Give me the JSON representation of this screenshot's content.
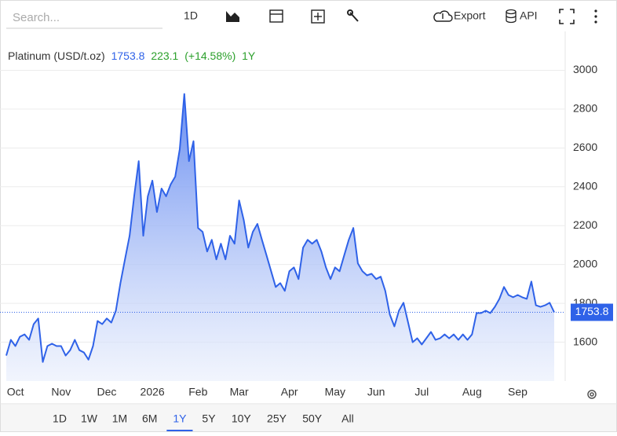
{
  "toolbar": {
    "search_placeholder": "Search...",
    "interval": "1D",
    "export": "Export",
    "api": "API"
  },
  "chart_data": {
    "type": "area",
    "period": "1Y",
    "change": 223.1,
    "change_pct": "(+14.58%)",
    "categories": [
      null,
      null,
      "Oct",
      null,
      null,
      null,
      null,
      null,
      null,
      null,
      null,
      null,
      "Nov",
      null,
      null,
      null,
      null,
      null,
      null,
      null,
      null,
      null,
      "Dec",
      null,
      null,
      null,
      null,
      null,
      null,
      null,
      null,
      null,
      "2026",
      null,
      null,
      null,
      null,
      null,
      null,
      null,
      null,
      null,
      "Feb",
      null,
      null,
      null,
      null,
      null,
      null,
      null,
      null,
      "Mar",
      null,
      null,
      null,
      null,
      null,
      null,
      null,
      null,
      null,
      null,
      "Apr",
      null,
      null,
      null,
      null,
      null,
      null,
      null,
      null,
      null,
      "May",
      null,
      null,
      null,
      null,
      null,
      null,
      null,
      null,
      "Jun",
      null,
      null,
      null,
      null,
      null,
      null,
      null,
      null,
      null,
      "Jul",
      null,
      null,
      null,
      null,
      null,
      null,
      null,
      null,
      null,
      null,
      "Aug",
      null,
      null,
      null,
      null,
      null,
      null,
      null,
      null,
      null,
      "Sep",
      null,
      null,
      null,
      null,
      null,
      null,
      null,
      null
    ],
    "series": [
      {
        "name": "Platinum (USD/t.oz)",
        "color": "#2f62e8",
        "values": [
          1531,
          1612,
          1580,
          1628,
          1640,
          1612,
          1693,
          1722,
          1498,
          1580,
          1592,
          1580,
          1580,
          1531,
          1559,
          1612,
          1559,
          1547,
          1510,
          1580,
          1709,
          1693,
          1722,
          1701,
          1762,
          1904,
          2026,
          2148,
          2351,
          2532,
          2148,
          2351,
          2432,
          2270,
          2391,
          2351,
          2412,
          2452,
          2594,
          2878,
          2532,
          2635,
          2188,
          2168,
          2067,
          2127,
          2026,
          2107,
          2026,
          2148,
          2107,
          2330,
          2229,
          2087,
          2168,
          2209,
          2127,
          2046,
          1965,
          1884,
          1904,
          1864,
          1965,
          1985,
          1925,
          2087,
          2127,
          2107,
          2127,
          2067,
          1985,
          1925,
          1985,
          1965,
          2046,
          2127,
          2188,
          2006,
          1965,
          1944,
          1952,
          1925,
          1937,
          1864,
          1742,
          1681,
          1762,
          1803,
          1701,
          1600,
          1620,
          1588,
          1620,
          1653,
          1612,
          1620,
          1640,
          1620,
          1640,
          1612,
          1640,
          1612,
          1640,
          1750,
          1750,
          1762,
          1750,
          1782,
          1823,
          1884,
          1843,
          1831,
          1843,
          1831,
          1823,
          1912,
          1790,
          1782,
          1790,
          1803,
          1753.8
        ]
      }
    ],
    "ylim": [
      1400,
      3200
    ],
    "yticks": [
      1600,
      1800,
      2000,
      2200,
      2400,
      2600,
      2800,
      3000
    ],
    "grid": true,
    "range_buttons": [
      "1D",
      "1W",
      "1M",
      "6M",
      "1Y",
      "5Y",
      "10Y",
      "25Y",
      "50Y",
      "All"
    ]
  }
}
